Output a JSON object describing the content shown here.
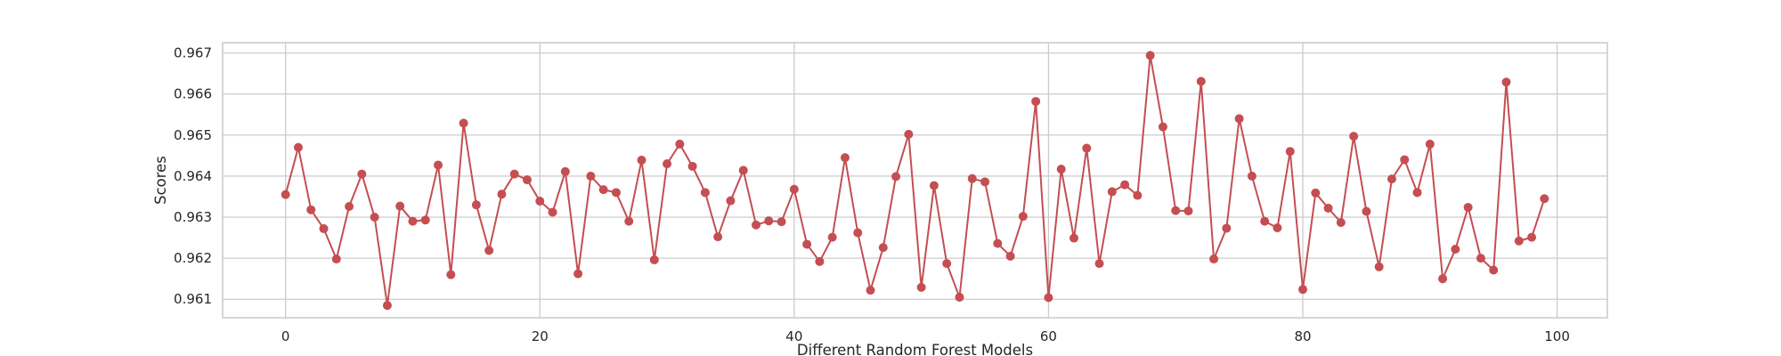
{
  "chart_data": {
    "type": "line",
    "xlabel": "Different Random Forest Models",
    "ylabel": "Scores",
    "xlim": [
      -4.95,
      103.95
    ],
    "ylim": [
      0.96055,
      0.96725
    ],
    "xticks": [
      0,
      20,
      40,
      60,
      80,
      100
    ],
    "yticks": [
      0.961,
      0.962,
      0.963,
      0.964,
      0.965,
      0.966,
      0.967
    ],
    "xtick_labels": [
      "0",
      "20",
      "40",
      "60",
      "80",
      "100"
    ],
    "ytick_labels": [
      "0.961",
      "0.962",
      "0.963",
      "0.964",
      "0.965",
      "0.966",
      "0.967"
    ],
    "grid": true,
    "color": "#c44e52",
    "marker": "circle",
    "x": [
      0,
      1,
      2,
      3,
      4,
      5,
      6,
      7,
      8,
      9,
      10,
      11,
      12,
      13,
      14,
      15,
      16,
      17,
      18,
      19,
      20,
      21,
      22,
      23,
      24,
      25,
      26,
      27,
      28,
      29,
      30,
      31,
      32,
      33,
      34,
      35,
      36,
      37,
      38,
      39,
      40,
      41,
      42,
      43,
      44,
      45,
      46,
      47,
      48,
      49,
      50,
      51,
      52,
      53,
      54,
      55,
      56,
      57,
      58,
      59,
      60,
      61,
      62,
      63,
      64,
      65,
      66,
      67,
      68,
      69,
      70,
      71,
      72,
      73,
      74,
      75,
      76,
      77,
      78,
      79,
      80,
      81,
      82,
      83,
      84,
      85,
      86,
      87,
      88,
      89,
      90,
      91,
      92,
      93,
      94,
      95,
      96,
      97,
      98,
      99
    ],
    "y": [
      0.96355,
      0.9647,
      0.96318,
      0.96272,
      0.96198,
      0.96326,
      0.96405,
      0.963,
      0.96085,
      0.96327,
      0.9629,
      0.96293,
      0.96427,
      0.9616,
      0.96529,
      0.9633,
      0.96219,
      0.96356,
      0.96405,
      0.96391,
      0.96339,
      0.96312,
      0.96411,
      0.96162,
      0.964,
      0.96367,
      0.9636,
      0.9629,
      0.96439,
      0.96196,
      0.9643,
      0.96478,
      0.96424,
      0.9636,
      0.96252,
      0.9634,
      0.96414,
      0.96281,
      0.96291,
      0.96289,
      0.96368,
      0.96234,
      0.96192,
      0.96251,
      0.96445,
      0.96262,
      0.96122,
      0.96226,
      0.96399,
      0.96502,
      0.96129,
      0.96377,
      0.96187,
      0.96105,
      0.96394,
      0.96386,
      0.96236,
      0.96205,
      0.96302,
      0.96582,
      0.96104,
      0.96417,
      0.96249,
      0.96468,
      0.96187,
      0.96362,
      0.96379,
      0.96353,
      0.96694,
      0.9652,
      0.96316,
      0.96315,
      0.96631,
      0.96198,
      0.96273,
      0.9654,
      0.964,
      0.9629,
      0.96274,
      0.9646,
      0.96124,
      0.96359,
      0.96322,
      0.96287,
      0.96497,
      0.96314,
      0.96179,
      0.96393,
      0.9644,
      0.9636,
      0.96478,
      0.9615,
      0.96222,
      0.96324,
      0.962,
      0.96171,
      0.96629,
      0.96242,
      0.96251,
      0.96345
    ]
  }
}
